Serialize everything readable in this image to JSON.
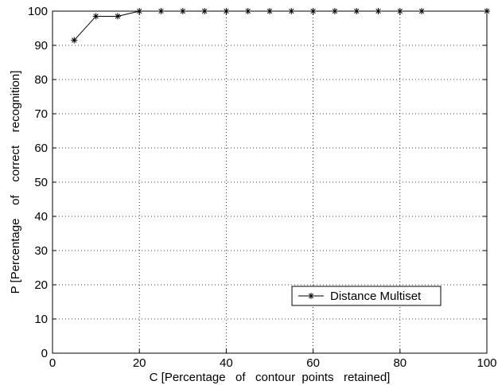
{
  "chart_data": {
    "type": "line",
    "xlabel": "C [Percentage   of   contour  points   retained]",
    "ylabel": "P [Percentage    of    correct    recognition]",
    "xlim": [
      0,
      100
    ],
    "ylim": [
      0,
      100
    ],
    "xticks": [
      "0",
      "20",
      "40",
      "60",
      "80",
      "100"
    ],
    "yticks": [
      "0",
      "10",
      "20",
      "30",
      "40",
      "50",
      "60",
      "70",
      "80",
      "90",
      "100"
    ],
    "grid": true,
    "legend_position": "bottom-right",
    "series": [
      {
        "name": "Distance Multiset",
        "marker": "asterisk",
        "color": "#000000",
        "x": [
          5,
          10,
          15,
          20,
          25,
          30,
          35,
          40,
          45,
          50,
          55,
          60,
          65,
          70,
          75,
          80,
          85,
          100
        ],
        "y": [
          91.5,
          98.5,
          98.5,
          100,
          100,
          100,
          100,
          100,
          100,
          100,
          100,
          100,
          100,
          100,
          100,
          100,
          100,
          100
        ]
      }
    ]
  }
}
